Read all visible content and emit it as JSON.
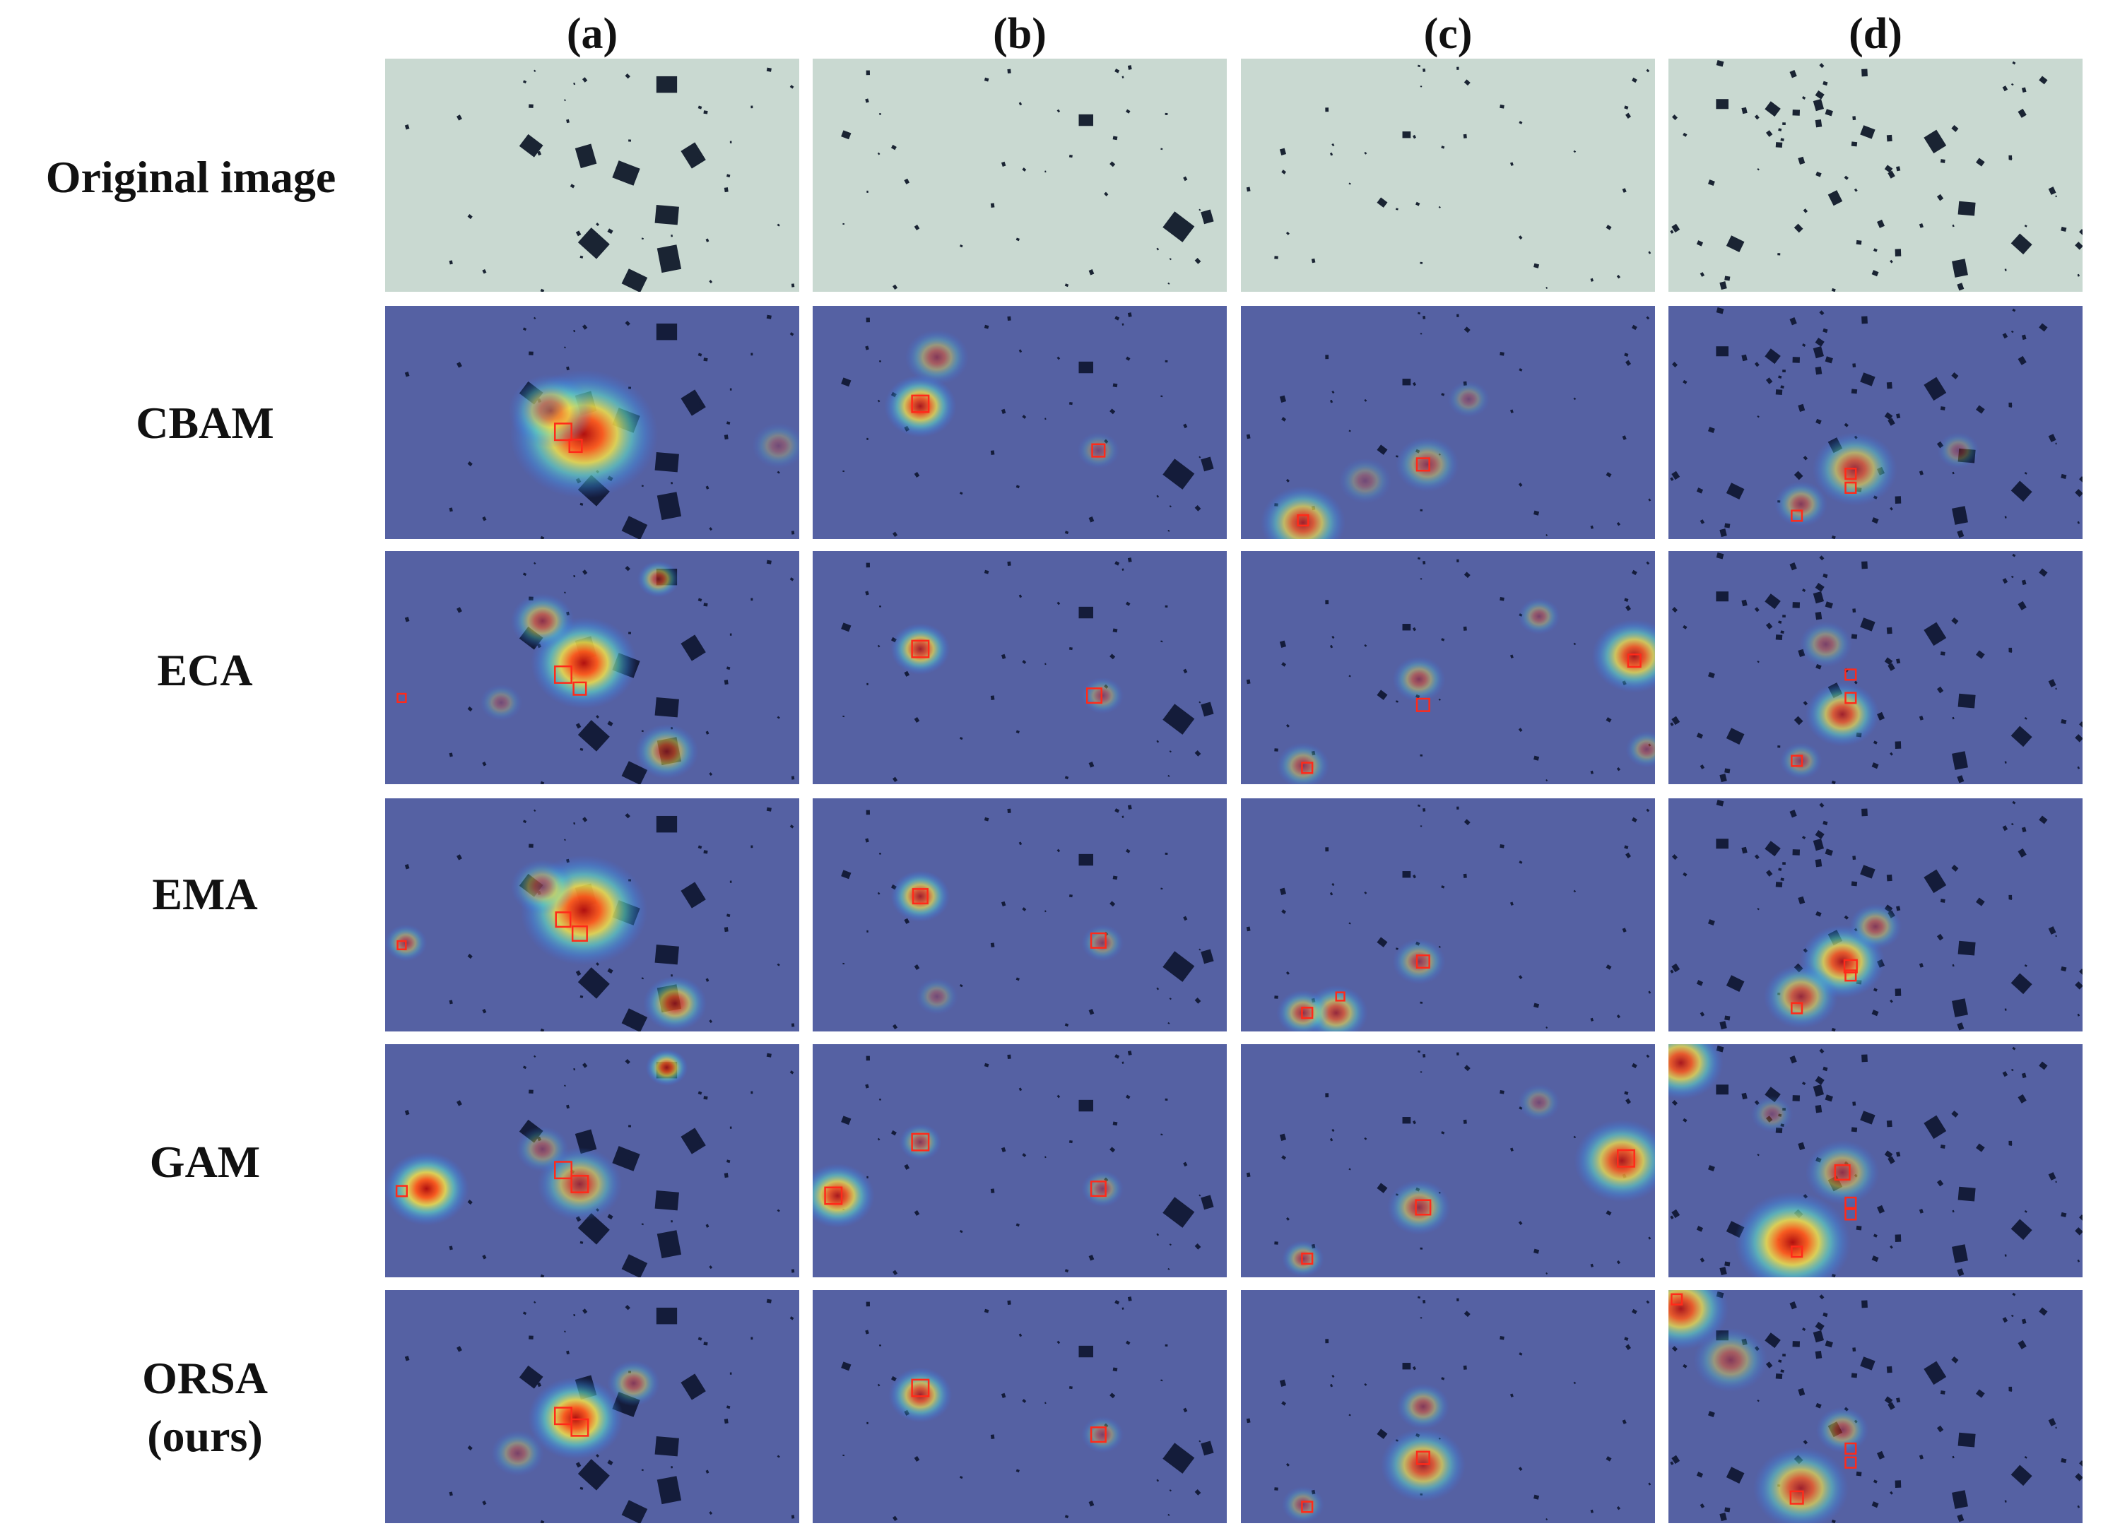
{
  "columns": [
    "(a)",
    "(b)",
    "(c)",
    "(d)"
  ],
  "rows": [
    {
      "label": "Original image",
      "kind": "original"
    },
    {
      "label": "CBAM",
      "kind": "heatmap"
    },
    {
      "label": "ECA",
      "kind": "heatmap"
    },
    {
      "label": "EMA",
      "kind": "heatmap"
    },
    {
      "label": "GAM",
      "kind": "heatmap"
    },
    {
      "label": "ORSA\n(ours)",
      "kind": "heatmap"
    }
  ],
  "colors": {
    "original_background": "#c9d9d1",
    "heatmap_background": "#5561a3",
    "particle": "#1a2433",
    "box": "#ff2a1a"
  }
}
